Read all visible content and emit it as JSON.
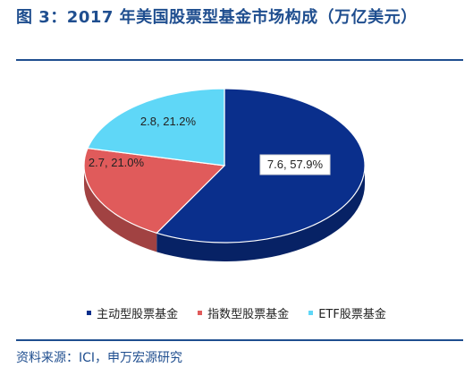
{
  "title": "图 3：2017 年美国股票型基金市场构成（万亿美元）",
  "source": "资料来源：ICI，申万宏源研究",
  "chart_data": {
    "type": "pie",
    "title": "图 3：2017 年美国股票型基金市场构成（万亿美元）",
    "slices": [
      {
        "name": "主动型股票基金",
        "value": 7.6,
        "percent": 57.9,
        "label": "7.6, 57.9%",
        "color": "#0a2f8c"
      },
      {
        "name": "指数型股票基金",
        "value": 2.7,
        "percent": 21.0,
        "label": "2.7, 21.0%",
        "color": "#e05b5b"
      },
      {
        "name": "ETF股票基金",
        "value": 2.8,
        "percent": 21.2,
        "label": "2.8, 21.2%",
        "color": "#5fd7f7"
      }
    ],
    "legend_position": "bottom",
    "style": "3d-pie"
  }
}
